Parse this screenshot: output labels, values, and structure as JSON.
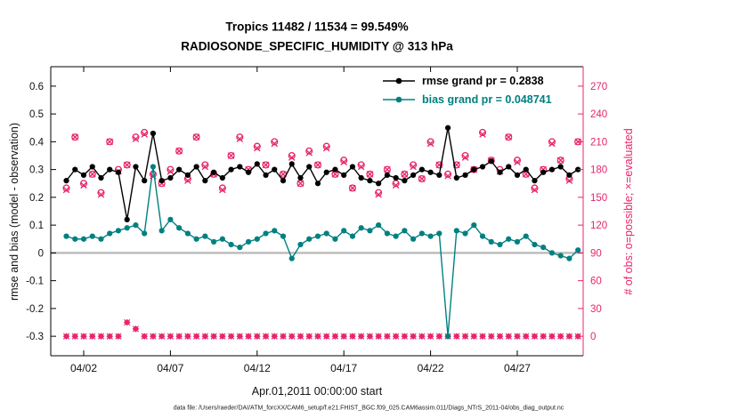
{
  "chart_data": {
    "type": "line",
    "title": "Tropics 11482 / 11534 = 99.549%",
    "subtitle": "RADIOSONDE_SPECIFIC_HUMIDITY @ 313 hPa",
    "xlabel": "Apr.01,2011 00:00:00 start",
    "ylabel_left": "rmse and bias (model - observation)",
    "ylabel_right": "# of obs: o=possible; ×=evaluated",
    "caption": "data file: /Users/raeder/DAI/ATM_forcXX/CAM6_setup/f.e21.FHIST_BGC.f09_025.CAM6assim.011/Diags_NTrS_2011-04/obs_diag_output.nc",
    "grid": false,
    "legend_position": "top-right-inside",
    "legend": [
      {
        "label": "rmse grand pr = 0.2838",
        "color": "#000000"
      },
      {
        "label": "bias grand pr = 0.048741",
        "color": "#008080"
      }
    ],
    "colors": {
      "obs_axis": "#e8246c",
      "zero_line": "#bdbdbd"
    },
    "x_unit": "day of April 2011",
    "x_lim": [
      0.1,
      30.8
    ],
    "left_ylim": [
      -0.37,
      0.67
    ],
    "right_ylim": [
      -21,
      291
    ],
    "left_ticks": [
      -0.3,
      -0.2,
      -0.1,
      0,
      0.1,
      0.2,
      0.3,
      0.4,
      0.5,
      0.6
    ],
    "right_ticks": [
      0,
      30,
      60,
      90,
      120,
      150,
      180,
      210,
      240,
      270
    ],
    "x_ticks": [
      {
        "day": 2,
        "label": "04/02"
      },
      {
        "day": 7,
        "label": "04/07"
      },
      {
        "day": 12,
        "label": "04/12"
      },
      {
        "day": 17,
        "label": "04/17"
      },
      {
        "day": 22,
        "label": "04/22"
      },
      {
        "day": 27,
        "label": "04/27"
      }
    ],
    "x": [
      1,
      1.5,
      2,
      2.5,
      3,
      3.5,
      4,
      4.5,
      5,
      5.5,
      6,
      6.5,
      7,
      7.5,
      8,
      8.5,
      9,
      9.5,
      10,
      10.5,
      11,
      11.5,
      12,
      12.5,
      13,
      13.5,
      14,
      14.5,
      15,
      15.5,
      16,
      16.5,
      17,
      17.5,
      18,
      18.5,
      19,
      19.5,
      20,
      20.5,
      21,
      21.5,
      22,
      22.5,
      23,
      23.5,
      24,
      24.5,
      25,
      25.5,
      26,
      26.5,
      27,
      27.5,
      28,
      28.5,
      29,
      29.5,
      30,
      30.5
    ],
    "series": [
      {
        "name": "rmse",
        "axis": "left",
        "line": true,
        "marker": "filled-circle",
        "color": "#000000",
        "values": [
          0.26,
          0.3,
          0.28,
          0.31,
          0.27,
          0.3,
          0.29,
          0.12,
          0.31,
          0.26,
          0.43,
          0.26,
          0.27,
          0.3,
          0.28,
          0.31,
          0.26,
          0.29,
          0.27,
          0.3,
          0.31,
          0.29,
          0.32,
          0.28,
          0.3,
          0.26,
          0.32,
          0.27,
          0.31,
          0.25,
          0.29,
          0.3,
          0.28,
          0.31,
          0.27,
          0.26,
          0.25,
          0.28,
          0.27,
          0.26,
          0.28,
          0.3,
          0.29,
          0.28,
          0.45,
          0.27,
          0.28,
          0.3,
          0.31,
          0.33,
          0.29,
          0.31,
          0.28,
          0.3,
          0.26,
          0.29,
          0.3,
          0.31,
          0.28,
          0.3
        ]
      },
      {
        "name": "bias",
        "axis": "left",
        "line": true,
        "marker": "filled-circle",
        "color": "#008080",
        "values": [
          0.06,
          0.05,
          0.05,
          0.06,
          0.05,
          0.07,
          0.08,
          0.09,
          0.1,
          0.07,
          0.31,
          0.08,
          0.12,
          0.09,
          0.07,
          0.05,
          0.06,
          0.04,
          0.05,
          0.03,
          0.02,
          0.04,
          0.05,
          0.07,
          0.08,
          0.06,
          -0.02,
          0.03,
          0.05,
          0.06,
          0.07,
          0.05,
          0.08,
          0.06,
          0.09,
          0.08,
          0.1,
          0.07,
          0.06,
          0.08,
          0.05,
          0.07,
          0.06,
          0.07,
          -0.3,
          0.08,
          0.07,
          0.1,
          0.06,
          0.04,
          0.03,
          0.05,
          0.04,
          0.06,
          0.03,
          0.02,
          0,
          -0.01,
          -0.02,
          0.01
        ]
      },
      {
        "name": "possible obs (o)",
        "axis": "right",
        "line": false,
        "marker": "open-circle",
        "color": "#e8246c",
        "values": [
          160,
          215,
          165,
          175,
          155,
          210,
          180,
          185,
          215,
          220,
          175,
          165,
          180,
          200,
          170,
          215,
          185,
          175,
          160,
          195,
          215,
          180,
          205,
          185,
          210,
          175,
          195,
          165,
          200,
          185,
          205,
          175,
          190,
          160,
          185,
          175,
          155,
          180,
          165,
          175,
          185,
          170,
          210,
          185,
          175,
          185,
          195,
          180,
          220,
          190,
          180,
          215,
          190,
          175,
          160,
          180,
          210,
          190,
          170,
          210
        ]
      },
      {
        "name": "evaluated obs (x)",
        "axis": "right",
        "line": false,
        "marker": "x",
        "color": "#e8246c",
        "values": [
          158,
          215,
          163,
          175,
          153,
          210,
          178,
          185,
          213,
          218,
          173,
          165,
          178,
          200,
          168,
          215,
          183,
          175,
          158,
          195,
          213,
          180,
          203,
          185,
          208,
          175,
          193,
          165,
          198,
          185,
          203,
          175,
          188,
          160,
          183,
          175,
          153,
          180,
          163,
          175,
          183,
          170,
          208,
          185,
          173,
          185,
          193,
          180,
          218,
          190,
          178,
          215,
          188,
          175,
          158,
          180,
          208,
          190,
          168,
          210
        ]
      },
      {
        "name": "near zero obs markers",
        "axis": "right",
        "line": false,
        "marker": "diamond",
        "color": "#e8246c",
        "values": [
          0,
          0,
          0,
          0,
          0,
          0,
          0,
          15,
          8,
          0,
          0,
          0,
          0,
          0,
          0,
          0,
          0,
          0,
          0,
          0,
          0,
          0,
          0,
          0,
          0,
          0,
          0,
          0,
          0,
          0,
          0,
          0,
          0,
          0,
          0,
          0,
          0,
          0,
          0,
          0,
          0,
          0,
          0,
          0,
          0,
          0,
          0,
          0,
          0,
          0,
          0,
          0,
          0,
          0,
          0,
          0,
          0,
          0,
          0,
          0
        ]
      }
    ]
  }
}
